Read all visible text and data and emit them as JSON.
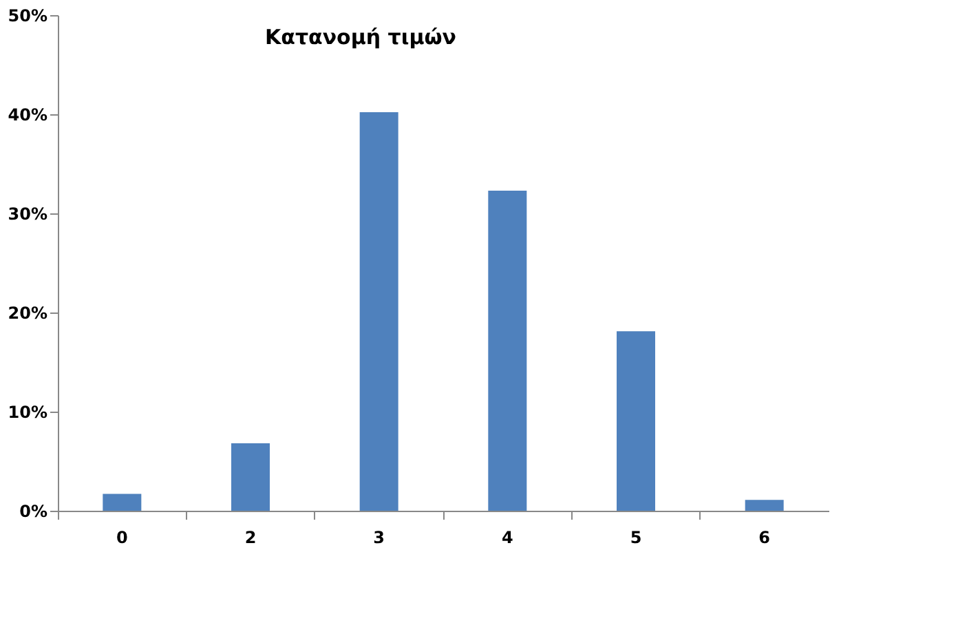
{
  "chart_data": {
    "type": "bar",
    "title": "Κατανομή τιμών",
    "categories": [
      "0",
      "2",
      "3",
      "4",
      "5",
      "6"
    ],
    "values": [
      1.7,
      6.8,
      40.2,
      32.3,
      18.1,
      1.1
    ],
    "color": "#4f81bd",
    "ylim": [
      0,
      50
    ],
    "yticks": [
      {
        "value": 0,
        "label": "0%"
      },
      {
        "value": 10,
        "label": "10%"
      },
      {
        "value": 20,
        "label": "20%"
      },
      {
        "value": 30,
        "label": "30%"
      },
      {
        "value": 40,
        "label": "40%"
      },
      {
        "value": 50,
        "label": "50%"
      }
    ],
    "grid": false
  }
}
